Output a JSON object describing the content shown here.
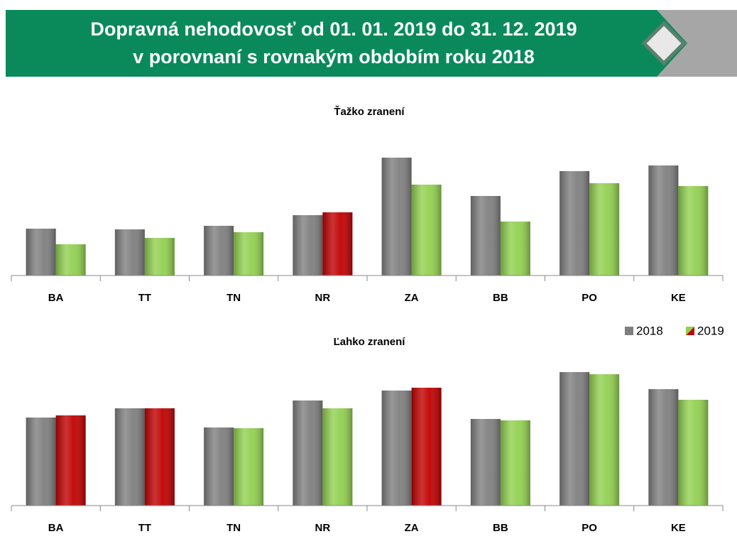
{
  "header": {
    "lines": [
      "Dopravná nehodovosť od 01. 01. 2019 do 31. 12. 2019",
      "v porovnaní s rovnakým obdobím roku 2018"
    ]
  },
  "chart_data": [
    {
      "type": "bar",
      "title": "Ťažko zranení",
      "categories": [
        "BA",
        "TT",
        "TN",
        "NR",
        "ZA",
        "BB",
        "PO",
        "KE"
      ],
      "series": [
        {
          "color": "#7f7f7f",
          "values": [
            66,
            65,
            70,
            85,
            166,
            112,
            147,
            155
          ]
        },
        {
          "colors": [
            "#92d050",
            "#92d050",
            "#92d050",
            "#c00000",
            "#92d050",
            "#92d050",
            "#92d050",
            "#92d050"
          ],
          "values": [
            44,
            53,
            61,
            89,
            128,
            76,
            130,
            126
          ]
        }
      ],
      "ylim": [
        0,
        180
      ]
    },
    {
      "type": "bar",
      "title": "Ľahko zranení",
      "categories": [
        "BA",
        "TT",
        "TN",
        "NR",
        "ZA",
        "BB",
        "PO",
        "KE"
      ],
      "series": [
        {
          "name": "2018",
          "color": "#7f7f7f",
          "values": [
            124,
            137,
            110,
            148,
            162,
            122,
            188,
            164
          ]
        },
        {
          "name": "2019",
          "colors": [
            "#c00000",
            "#c00000",
            "#92d050",
            "#92d050",
            "#c00000",
            "#92d050",
            "#92d050",
            "#92d050"
          ],
          "values": [
            127,
            137,
            109,
            137,
            166,
            120,
            185,
            149
          ]
        }
      ],
      "ylim": [
        0,
        200
      ],
      "legend": "top-right"
    }
  ]
}
